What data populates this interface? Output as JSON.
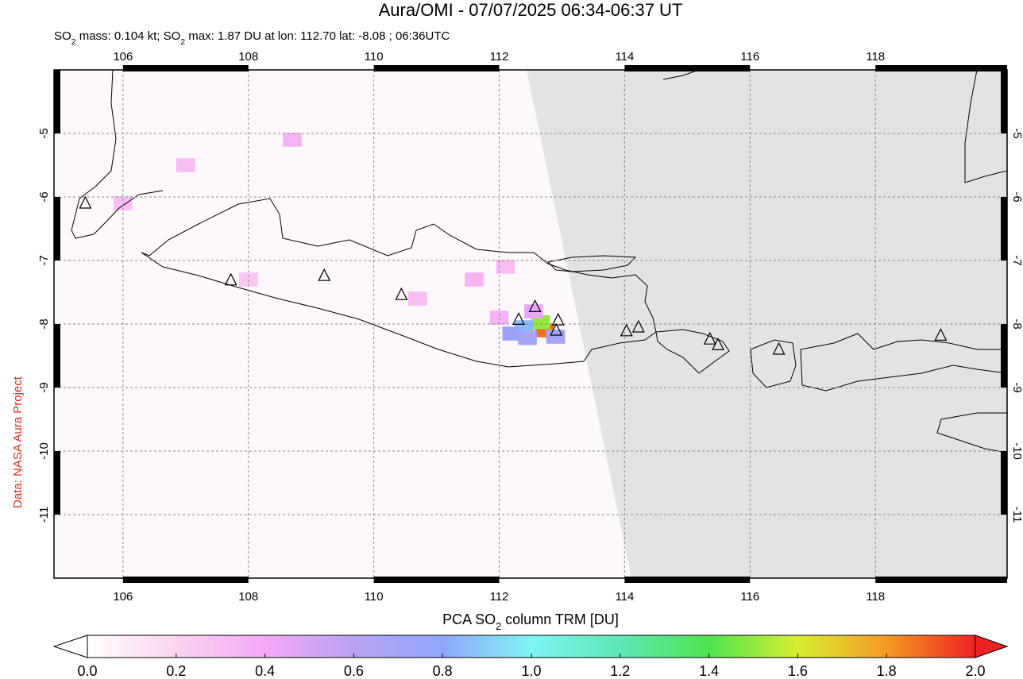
{
  "header": {
    "title": "Aura/OMI - 07/07/2025 06:34-06:37 UT",
    "subtitle": [
      "SO",
      "2",
      " mass: 0.104 kt; SO",
      "2",
      " max: 1.87 DU at lon: 112.70 lat: -8.08 ; 06:36UTC"
    ]
  },
  "credit": "Data: NASA Aura Project",
  "map": {
    "xlim": [
      104.9,
      120.1
    ],
    "ylim": [
      -12,
      -4
    ],
    "xticks": [
      106,
      108,
      110,
      112,
      114,
      116,
      118
    ],
    "yticks": [
      -5,
      -6,
      -7,
      -8,
      -9,
      -10,
      -11
    ],
    "grid": true,
    "pixels": [
      {
        "lon": 112.72,
        "lat": -8.1,
        "value": 1.87
      },
      {
        "lon": 112.66,
        "lat": -7.97,
        "value": 1.5
      },
      {
        "lon": 112.4,
        "lat": -8.05,
        "value": 0.85
      },
      {
        "lon": 112.2,
        "lat": -8.15,
        "value": 0.75
      },
      {
        "lon": 112.45,
        "lat": -8.22,
        "value": 0.7
      },
      {
        "lon": 112.9,
        "lat": -8.2,
        "value": 0.7
      },
      {
        "lon": 112.55,
        "lat": -7.8,
        "value": 0.45
      },
      {
        "lon": 112.0,
        "lat": -7.9,
        "value": 0.35
      },
      {
        "lon": 111.6,
        "lat": -7.3,
        "value": 0.35
      },
      {
        "lon": 112.1,
        "lat": -7.1,
        "value": 0.3
      },
      {
        "lon": 108.7,
        "lat": -5.1,
        "value": 0.35
      },
      {
        "lon": 107.0,
        "lat": -5.5,
        "value": 0.3
      },
      {
        "lon": 106.0,
        "lat": -6.1,
        "value": 0.3
      },
      {
        "lon": 108.0,
        "lat": -7.3,
        "value": 0.25
      },
      {
        "lon": 110.7,
        "lat": -7.6,
        "value": 0.3
      }
    ],
    "volcanoes": [
      [
        105.4,
        -6.1
      ],
      [
        107.72,
        -7.31
      ],
      [
        109.21,
        -7.24
      ],
      [
        110.44,
        -7.54
      ],
      [
        112.31,
        -7.93
      ],
      [
        112.57,
        -7.73
      ],
      [
        112.94,
        -7.94
      ],
      [
        112.91,
        -8.1
      ],
      [
        114.03,
        -8.11
      ],
      [
        114.22,
        -8.05
      ],
      [
        115.36,
        -8.24
      ],
      [
        115.49,
        -8.33
      ],
      [
        116.46,
        -8.4
      ],
      [
        119.04,
        -8.18
      ]
    ]
  },
  "colorbar": {
    "label": [
      "PCA SO",
      "2",
      " column TRM [DU]"
    ],
    "lim": [
      0,
      2
    ],
    "ticks": [
      {
        "value": 0,
        "label": "0.0"
      },
      0.2,
      0.4,
      0.6,
      0.8,
      {
        "value": 1,
        "label": "1.0"
      },
      1.2,
      1.4,
      1.6,
      1.8,
      {
        "value": 2,
        "label": "2.0"
      }
    ],
    "stops": [
      [
        0,
        "#ffffff"
      ],
      [
        0.2,
        "#fbd3f0"
      ],
      [
        0.4,
        "#f3a8f5"
      ],
      [
        0.6,
        "#b9a3f3"
      ],
      [
        0.8,
        "#8fa6fb"
      ],
      [
        1.0,
        "#7ff5f5"
      ],
      [
        1.2,
        "#5fe7b5"
      ],
      [
        1.4,
        "#4fe34f"
      ],
      [
        1.6,
        "#d8ee33"
      ],
      [
        1.8,
        "#f49a22"
      ],
      [
        2.0,
        "#ee2222"
      ]
    ]
  }
}
